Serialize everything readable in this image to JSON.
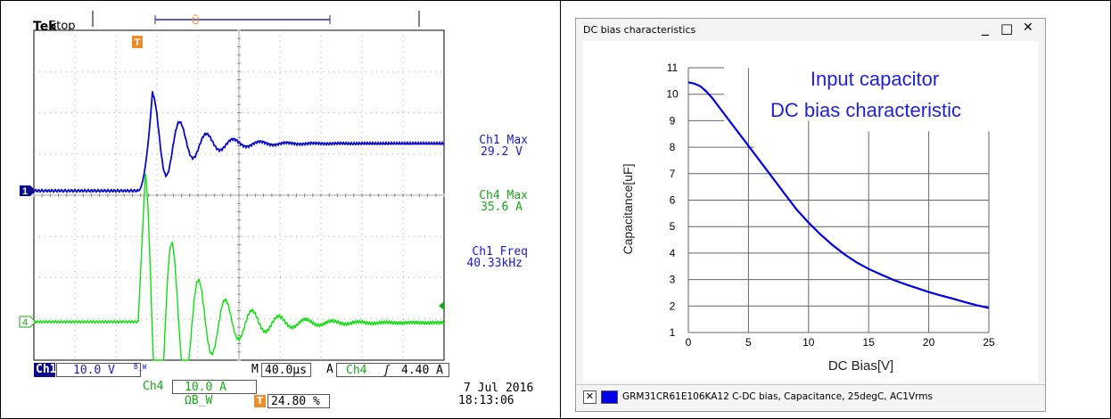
{
  "scope": {
    "brand": "Tek",
    "state": "Stop",
    "trigger_marker": "T",
    "ch1_marker": "1",
    "ch4_marker": "4",
    "measurements": [
      {
        "label": "Ch1 Max",
        "value": "29.2 V",
        "color": "#1a1acc"
      },
      {
        "label": "Ch4 Max",
        "value": "35.6 A",
        "color": "#19a619"
      },
      {
        "label": "Ch1 Freq",
        "value": "40.33kHz",
        "color": "#1a1acc"
      }
    ],
    "status": {
      "ch1_label": "Ch1",
      "ch1_scale": "10.0 V",
      "ch1_bw": "B_W",
      "timebase_prefix": "M",
      "timebase": "40.0µs",
      "trigger_source_prefix": "A",
      "trigger_ch": "Ch4",
      "trigger_slope": "ʃ",
      "trigger_level": "4.40 A",
      "ch4_label": "Ch4",
      "ch4_scale": "10.0 A ΩB_W",
      "trigger_pos": "24.80 %",
      "date": "7 Jul  2016",
      "time": "18:13:06"
    },
    "colors": {
      "ch1": "#0a0acc",
      "ch4": "#11dd11",
      "marker": "#f08c28"
    }
  },
  "window": {
    "title": "DC bias characteristics",
    "minimize": "_",
    "maximize": "□",
    "close": "✕",
    "legend_check": "✕",
    "legend_text": "GRM31CR61E106KA12  C-DC bias, Capacitance, 25degC, AC1Vrms",
    "annotation_line1": "Input capacitor",
    "annotation_line2": "DC bias characteristic"
  },
  "chart_data": {
    "type": "line",
    "title": "",
    "xlabel": "DC Bias[V]",
    "ylabel": "Capacitance[uF]",
    "xlim": [
      0,
      25
    ],
    "ylim": [
      1,
      11
    ],
    "x_ticks": [
      0,
      5,
      10,
      15,
      20,
      25
    ],
    "y_ticks": [
      1,
      2,
      3,
      4,
      5,
      6,
      7,
      8,
      9,
      10,
      11
    ],
    "grid": true,
    "series": [
      {
        "name": "GRM31CR61E106KA12",
        "color": "#0000e6",
        "x": [
          0,
          0.5,
          1,
          1.5,
          2,
          3,
          4,
          5,
          6,
          7,
          8,
          9,
          10,
          11,
          12,
          13,
          14,
          15,
          16,
          17,
          18,
          19,
          20,
          21,
          22,
          23,
          24,
          25
        ],
        "y": [
          10.45,
          10.4,
          10.3,
          10.1,
          9.85,
          9.25,
          8.65,
          8.05,
          7.45,
          6.85,
          6.25,
          5.65,
          5.15,
          4.7,
          4.3,
          3.95,
          3.65,
          3.4,
          3.2,
          3.0,
          2.83,
          2.68,
          2.53,
          2.4,
          2.28,
          2.15,
          2.03,
          1.93
        ]
      }
    ]
  }
}
